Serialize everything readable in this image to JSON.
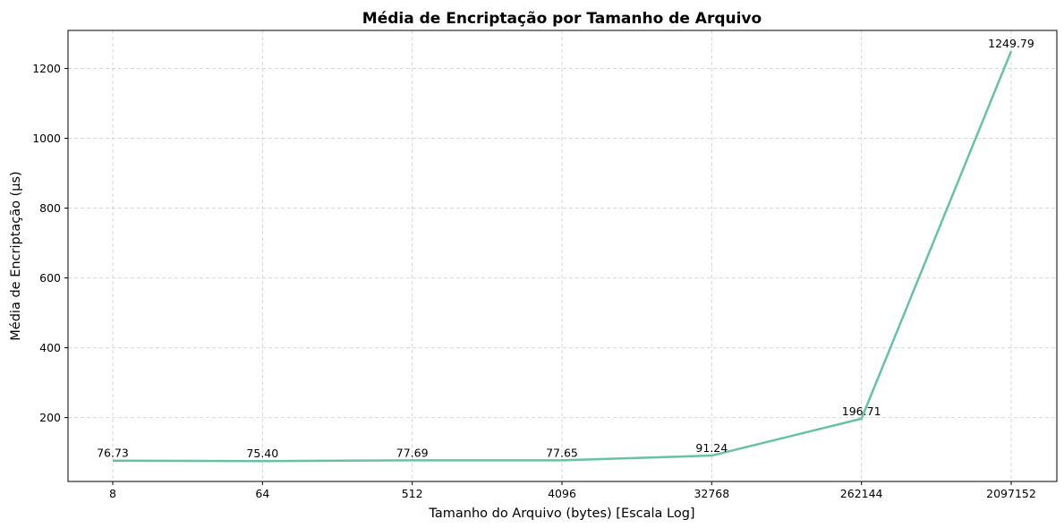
{
  "chart_data": {
    "type": "line",
    "title": "Média de Encriptação por Tamanho de Arquivo",
    "xlabel": "Tamanho do Arquivo (bytes) [Escala Log]",
    "ylabel": "Média de Encriptação (µs)",
    "x_scale": "log2",
    "x": [
      8,
      64,
      512,
      4096,
      32768,
      262144,
      2097152
    ],
    "x_tick_labels": [
      "8",
      "64",
      "512",
      "4096",
      "32768",
      "262144",
      "2097152"
    ],
    "y_ticks": [
      200,
      400,
      600,
      800,
      1000,
      1200
    ],
    "y_tick_labels": [
      "200",
      "400",
      "600",
      "800",
      "1000",
      "1200"
    ],
    "ylim": [
      17,
      1309
    ],
    "grid": true,
    "series": [
      {
        "values": [
          76.73,
          75.4,
          77.69,
          77.65,
          91.24,
          196.71,
          1249.79
        ],
        "data_labels": [
          "76.73",
          "75.40",
          "77.69",
          "77.65",
          "91.24",
          "196.71",
          "1249.79"
        ],
        "color": "#66c2a5"
      }
    ]
  }
}
